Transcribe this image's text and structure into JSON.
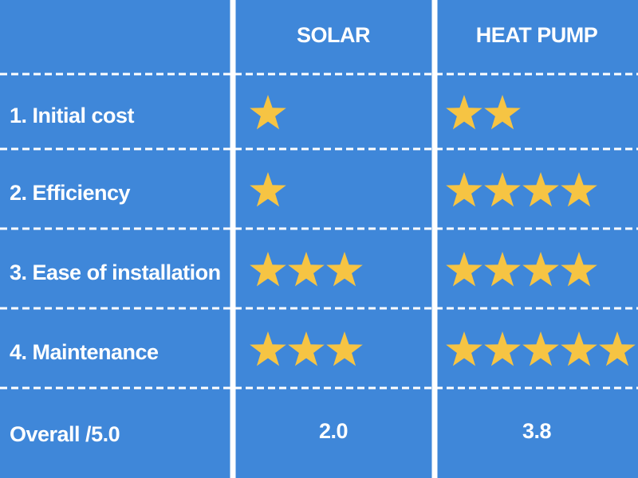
{
  "header": {
    "columns": [
      "SOLAR",
      "HEAT PUMP"
    ]
  },
  "rows": [
    {
      "label": "1. Initial cost",
      "ratings": [
        1,
        2
      ]
    },
    {
      "label": "2. Efficiency",
      "ratings": [
        1,
        4
      ]
    },
    {
      "label": "3. Ease of installation",
      "ratings": [
        3,
        4
      ]
    },
    {
      "label": "4. Maintenance",
      "ratings": [
        3,
        5
      ]
    }
  ],
  "overall": {
    "label": "Overall /5.0",
    "values": [
      "2.0",
      "3.8"
    ]
  }
}
